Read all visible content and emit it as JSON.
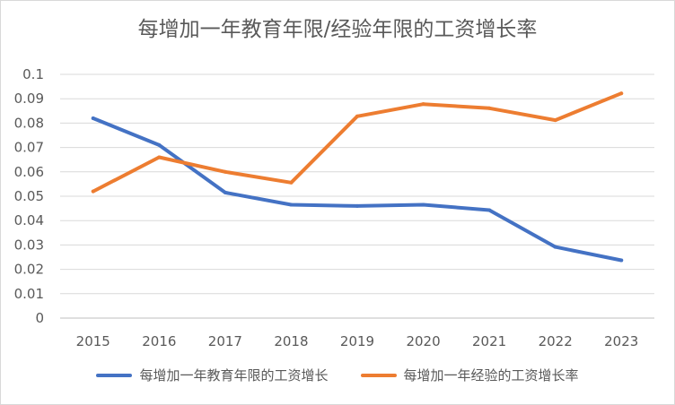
{
  "chart_data": {
    "type": "line",
    "title": "每增加一年教育年限/经验年限的工资增长率",
    "xlabel": "",
    "ylabel": "",
    "categories": [
      "2015",
      "2016",
      "2017",
      "2018",
      "2019",
      "2020",
      "2021",
      "2022",
      "2023"
    ],
    "ylim": [
      0,
      0.1
    ],
    "yticks": [
      "0",
      "0.01",
      "0.02",
      "0.03",
      "0.04",
      "0.05",
      "0.06",
      "0.07",
      "0.08",
      "0.09",
      "0.1"
    ],
    "grid": true,
    "legend_position": "bottom",
    "series": [
      {
        "name": "每增加一年教育年限的工资增长",
        "color": "#4472C4",
        "values": [
          0.082,
          0.071,
          0.0515,
          0.0465,
          0.046,
          0.0465,
          0.0443,
          0.0292,
          0.0237
        ]
      },
      {
        "name": "每增加一年经验的工资增长率",
        "color": "#ED7D31",
        "values": [
          0.052,
          0.066,
          0.06,
          0.0556,
          0.0828,
          0.0878,
          0.0861,
          0.0812,
          0.0922
        ]
      }
    ]
  }
}
